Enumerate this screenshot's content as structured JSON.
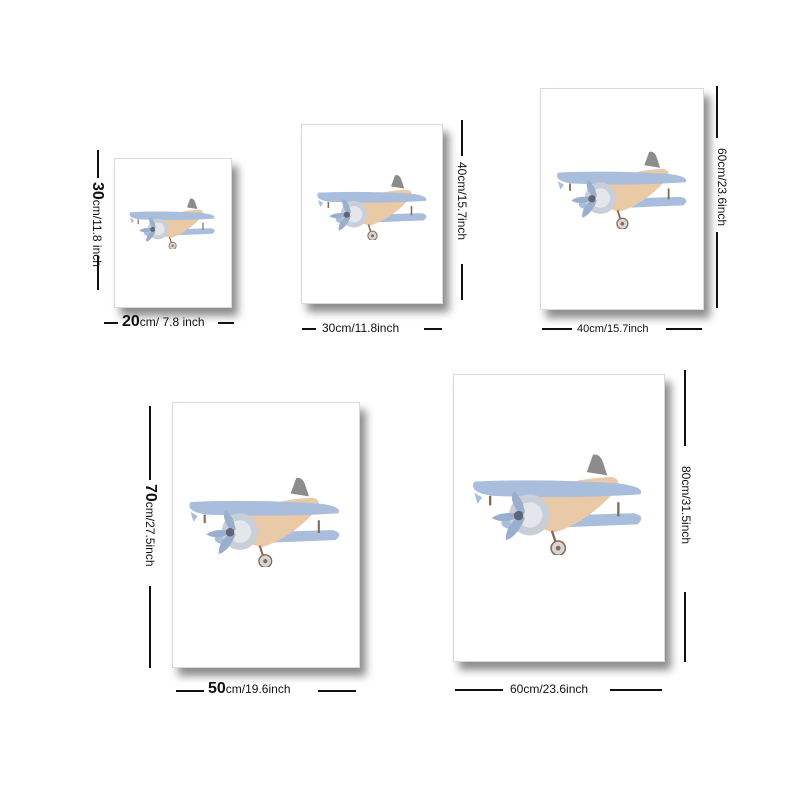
{
  "sizes": [
    {
      "width_num": "20",
      "width_rest": "cm/ 7.8 inch",
      "height_num": "30",
      "height_rest": "cm/11.8 inch"
    },
    {
      "width_label": "30cm/11.8inch",
      "height_label": "40cm/15.7inch"
    },
    {
      "width_label": "40cm/15.7inch",
      "height_label": "60cm/23.6inch"
    },
    {
      "width_num": "50",
      "width_rest": "cm/19.6inch",
      "height_num": "70",
      "height_rest": "cm/27.5inch"
    },
    {
      "width_label": "60cm/23.6inch",
      "height_label": "80cm/31.5inch"
    }
  ],
  "artwork": {
    "subject": "watercolor-biplane",
    "colors": {
      "wing": "#a9bddc",
      "body": "#e9c9a6",
      "prop": "#9aaecd",
      "fin": "#8c8c8c"
    }
  }
}
